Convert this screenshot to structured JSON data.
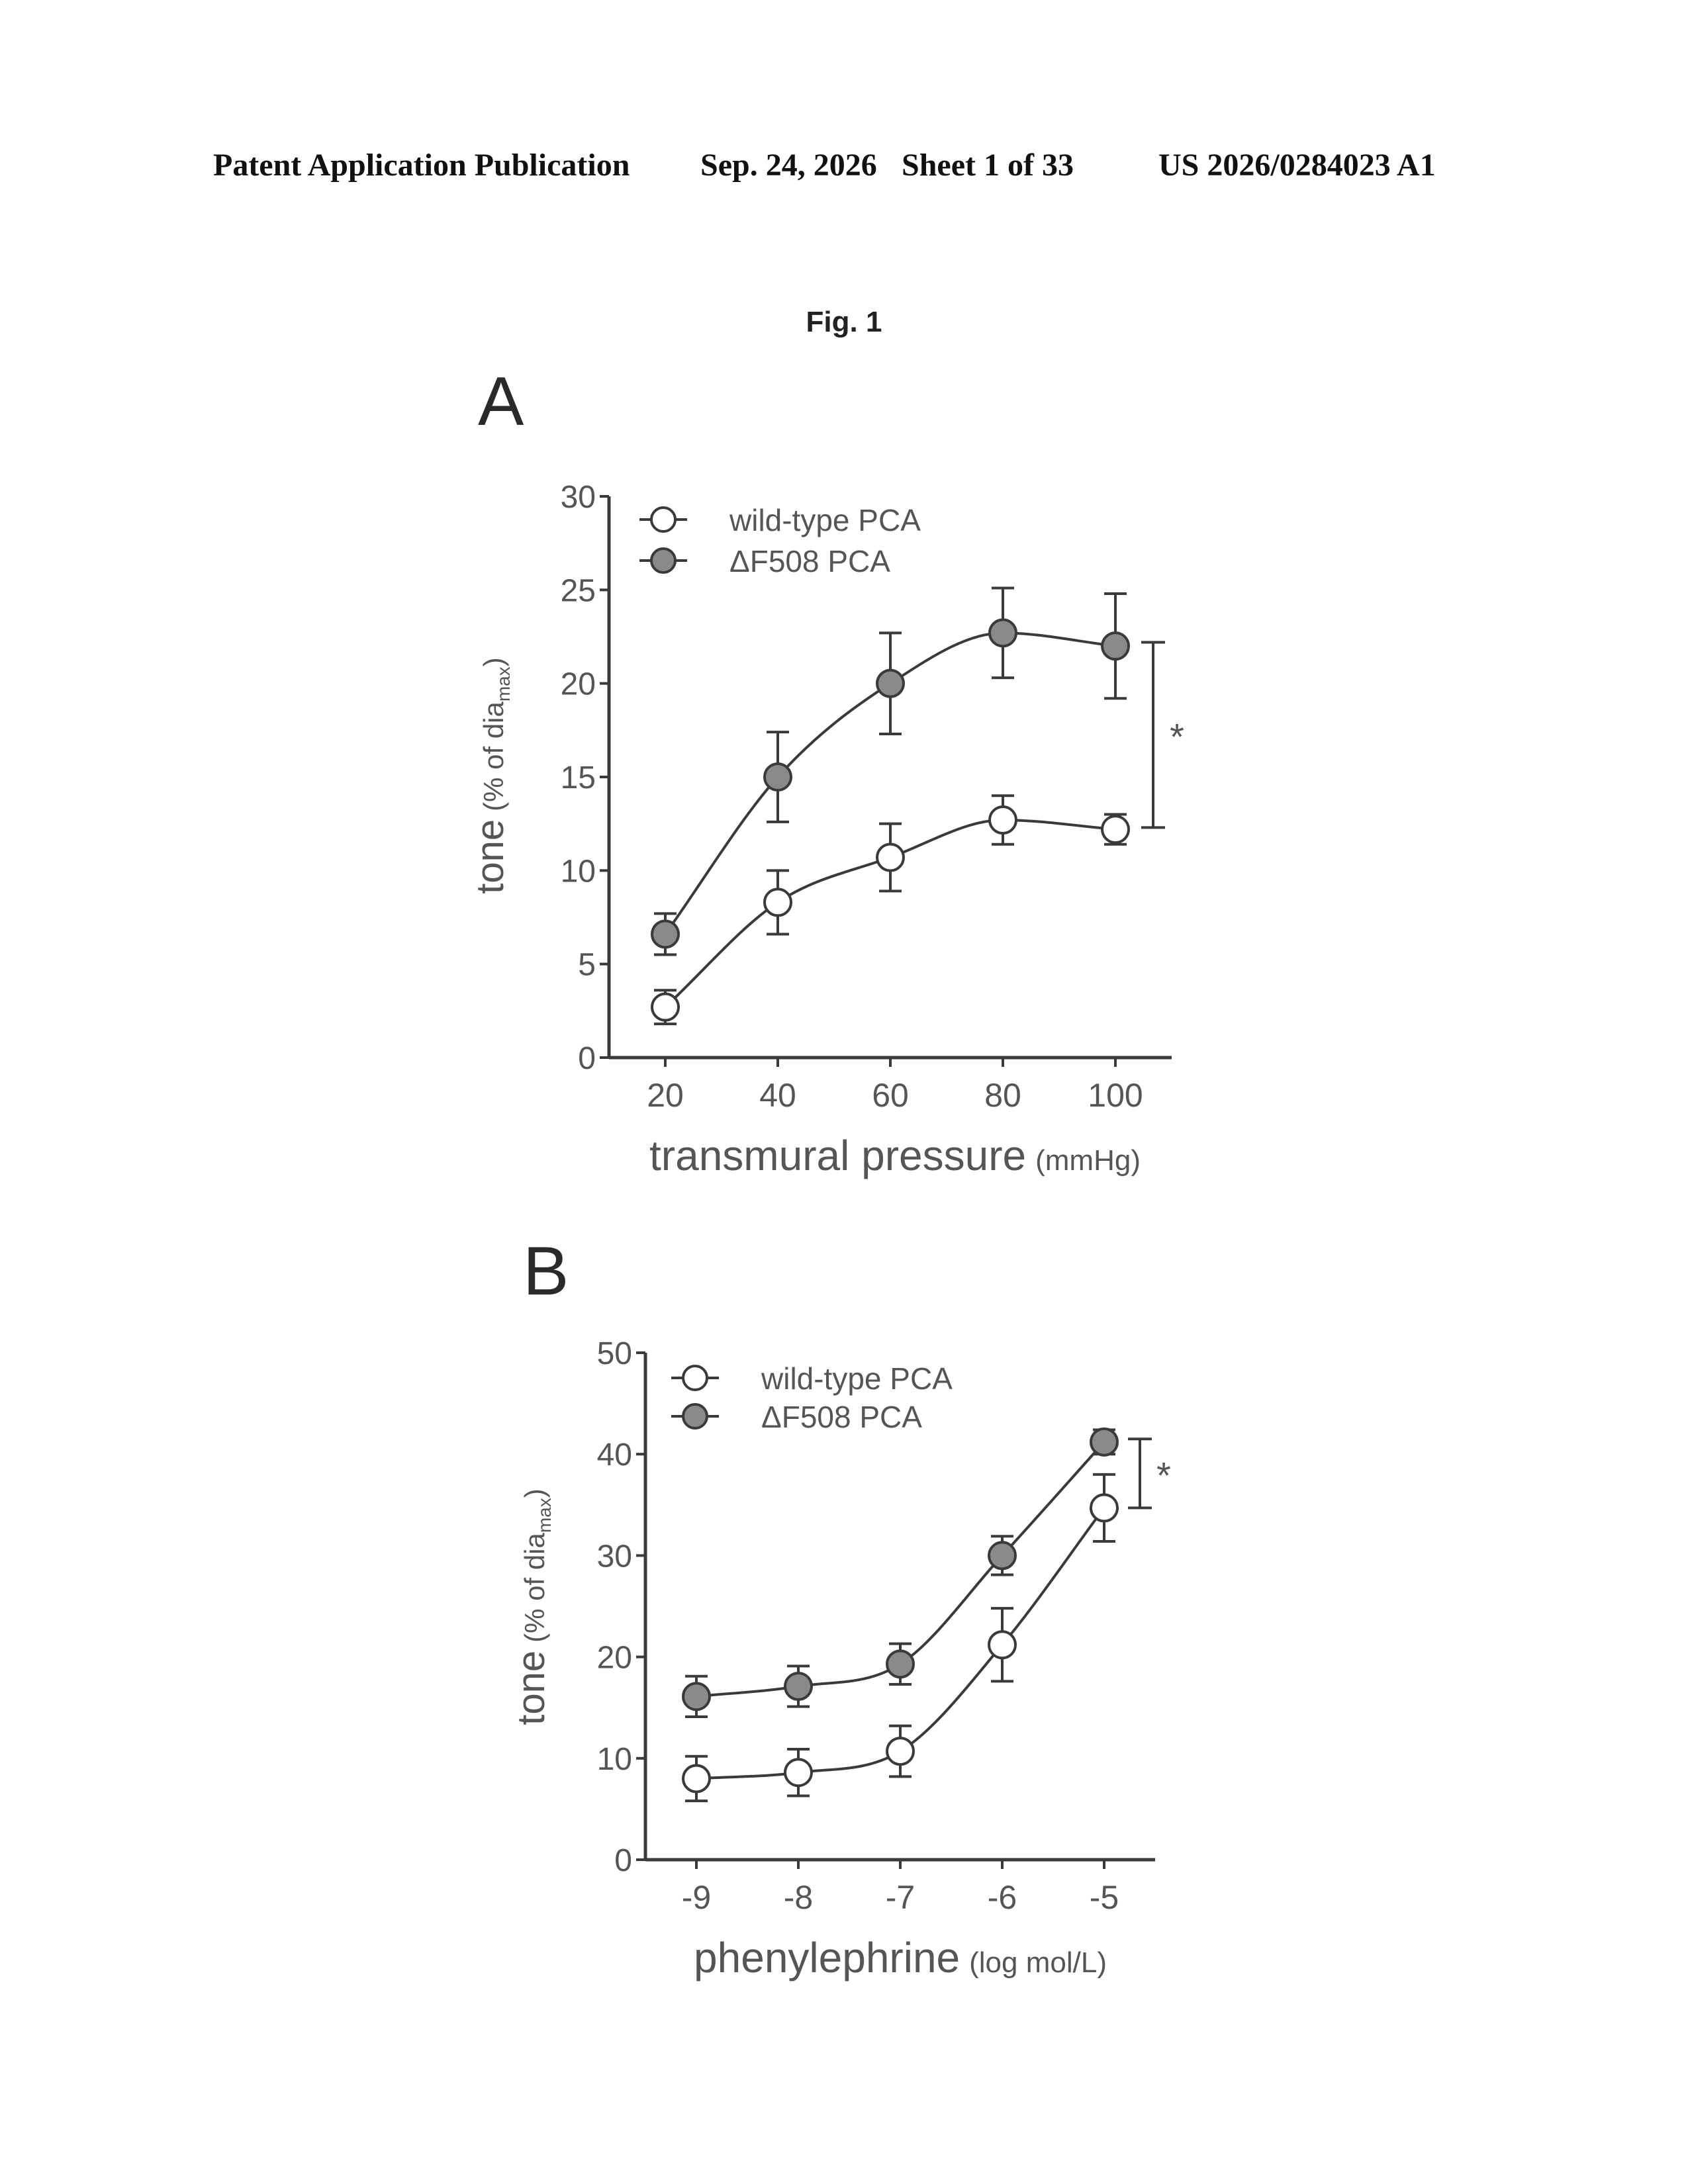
{
  "header": {
    "left": "Patent Application Publication",
    "date": "Sep. 24, 2026",
    "sheet": "Sheet 1 of 33",
    "number": "US 2026/0284023 A1"
  },
  "figure_title": "Fig. 1",
  "colors": {
    "open_marker": "#ffffff",
    "filled_marker": "#8a8a8a",
    "ink": "#3a3a3a"
  },
  "chart_data": [
    {
      "panel": "A",
      "type": "line",
      "x": [
        20,
        40,
        60,
        80,
        100
      ],
      "xlim": [
        10,
        110
      ],
      "xticks": [
        "20",
        "40",
        "60",
        "80",
        "100"
      ],
      "ylim": [
        0,
        30
      ],
      "yticks": [
        "0",
        "5",
        "10",
        "15",
        "20",
        "25",
        "30"
      ],
      "xlabel": "transmural pressure",
      "xlabel_unit": "(mmHg)",
      "ylabel": "tone",
      "ylabel_unit_pre": "(% of dia",
      "ylabel_unit_sub": "max",
      "ylabel_unit_post": ")",
      "series": [
        {
          "name": "wild-type PCA",
          "marker": "open",
          "values": [
            2.7,
            8.3,
            10.7,
            12.7,
            12.2
          ],
          "errors": [
            0.9,
            1.7,
            1.8,
            1.3,
            0.8
          ]
        },
        {
          "name": "ΔF508 PCA",
          "marker": "filled",
          "values": [
            6.6,
            15.0,
            20.0,
            22.7,
            22.0
          ],
          "errors": [
            1.1,
            2.4,
            2.7,
            2.4,
            2.8
          ]
        }
      ],
      "significance": {
        "label": "*",
        "from": 12.3,
        "to": 22.2
      }
    },
    {
      "panel": "B",
      "type": "line",
      "x": [
        -9,
        -8,
        -7,
        -6,
        -5
      ],
      "xlim": [
        -9.5,
        -4.5
      ],
      "xticks": [
        "-9",
        "-8",
        "-7",
        "-6",
        "-5"
      ],
      "ylim": [
        0,
        50
      ],
      "yticks": [
        "0",
        "10",
        "20",
        "30",
        "40",
        "50"
      ],
      "xlabel": "phenylephrine",
      "xlabel_unit": "(log mol/L)",
      "ylabel": "tone",
      "ylabel_unit_pre": "(% of dia",
      "ylabel_unit_sub": "max",
      "ylabel_unit_post": ")",
      "series": [
        {
          "name": "wild-type PCA",
          "marker": "open",
          "values": [
            8.0,
            8.6,
            10.7,
            21.2,
            34.7
          ],
          "errors": [
            2.2,
            2.3,
            2.5,
            3.6,
            3.3
          ]
        },
        {
          "name": "ΔF508 PCA",
          "marker": "filled",
          "values": [
            16.1,
            17.1,
            19.3,
            30.0,
            41.2
          ],
          "errors": [
            2.0,
            2.0,
            2.0,
            1.9,
            1.2
          ]
        }
      ],
      "significance": {
        "label": "*",
        "from": 34.7,
        "to": 41.5
      }
    }
  ]
}
